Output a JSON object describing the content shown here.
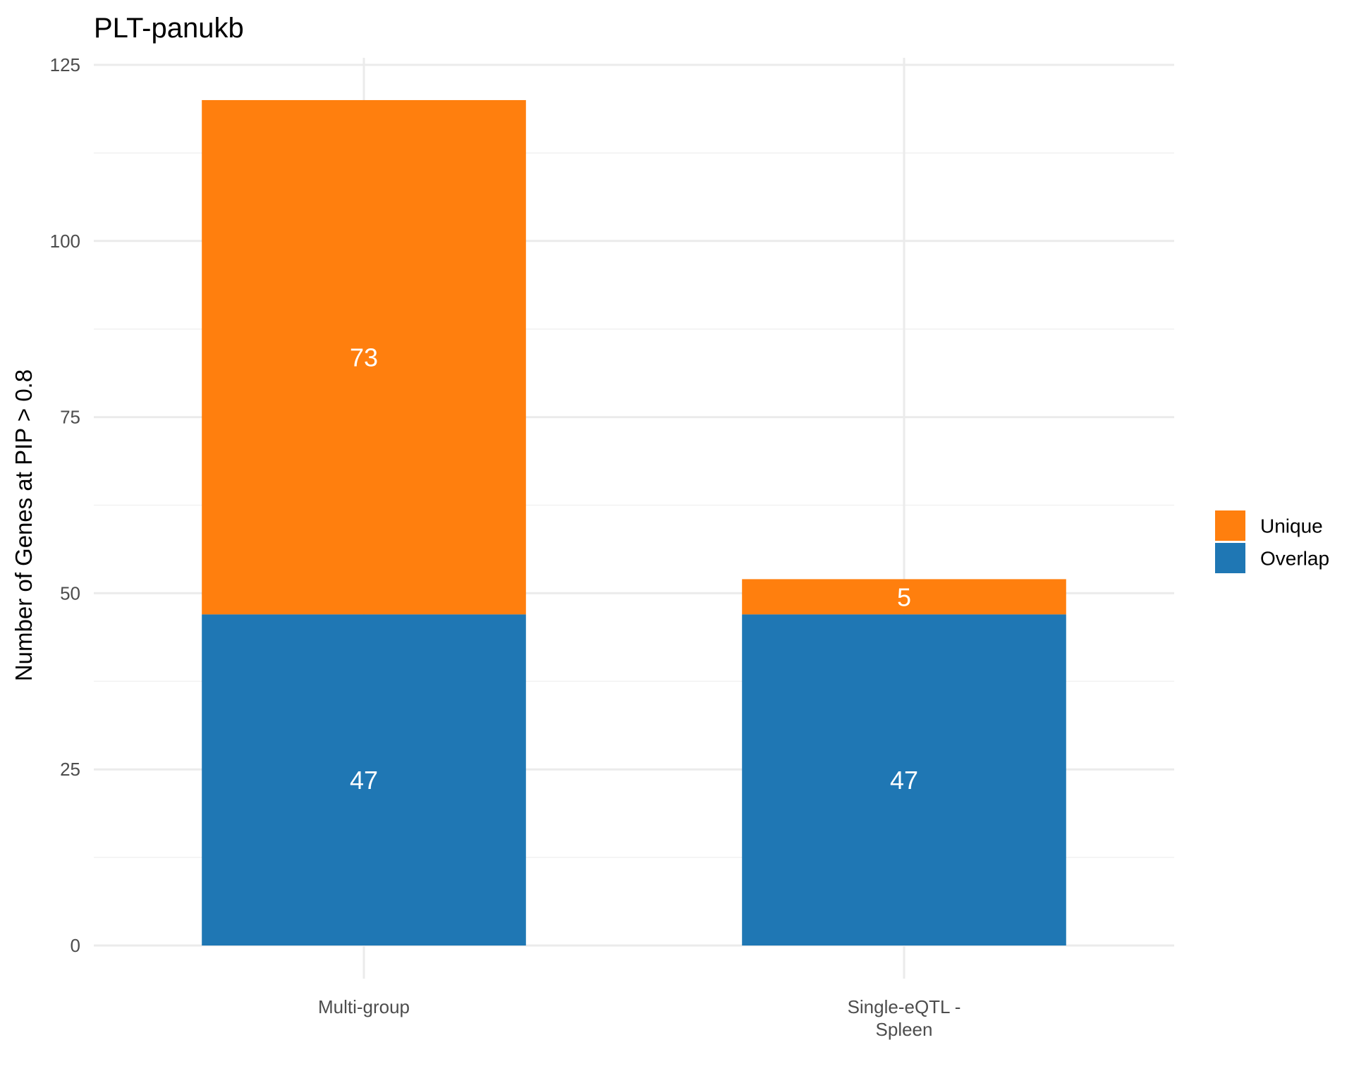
{
  "chart_data": {
    "type": "bar",
    "stacked": true,
    "title": "PLT-panukb",
    "xlabel": "",
    "ylabel": "Number of Genes at PIP > 0.8",
    "categories": [
      [
        "Multi-group"
      ],
      [
        "Single-eQTL -",
        "Spleen"
      ]
    ],
    "series": [
      {
        "name": "Overlap",
        "color": "#1f77b4",
        "values": [
          47,
          47
        ]
      },
      {
        "name": "Unique",
        "color": "#ff7f0e",
        "values": [
          73,
          5
        ]
      }
    ],
    "ylim": [
      0,
      125
    ],
    "yticks": [
      0,
      25,
      50,
      75,
      100,
      125
    ],
    "grid": true,
    "legend_position": "right",
    "legend_order": [
      "Unique",
      "Overlap"
    ],
    "show_value_labels": true
  }
}
